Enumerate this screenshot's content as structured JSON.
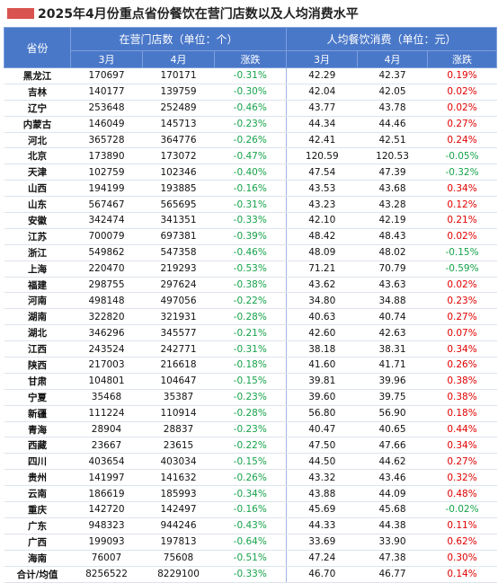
{
  "header": {
    "title": "2025年4月份重点省份餐饮在营门店数以及人均消费水平"
  },
  "table": {
    "group_headers": [
      "省份",
      "在营门店数（单位：个）",
      "人均餐饮消费（单位：元）"
    ],
    "sub_headers": [
      "3月",
      "4月",
      "涨跌",
      "3月",
      "4月",
      "涨跌"
    ],
    "rows": [
      [
        "黑龙江",
        "170697",
        "170171",
        "-0.31%",
        "42.29",
        "42.37",
        "0.19%"
      ],
      [
        "吉林",
        "140177",
        "139759",
        "-0.30%",
        "42.04",
        "42.05",
        "0.02%"
      ],
      [
        "辽宁",
        "253648",
        "252489",
        "-0.46%",
        "43.77",
        "43.78",
        "0.02%"
      ],
      [
        "内蒙古",
        "146049",
        "145713",
        "-0.23%",
        "44.34",
        "44.46",
        "0.27%"
      ],
      [
        "河北",
        "365728",
        "364776",
        "-0.26%",
        "42.41",
        "42.51",
        "0.24%"
      ],
      [
        "北京",
        "173890",
        "173072",
        "-0.47%",
        "120.59",
        "120.53",
        "-0.05%"
      ],
      [
        "天津",
        "102759",
        "102346",
        "-0.40%",
        "47.54",
        "47.39",
        "-0.32%"
      ],
      [
        "山西",
        "194199",
        "193885",
        "-0.16%",
        "43.53",
        "43.68",
        "0.34%"
      ],
      [
        "山东",
        "567467",
        "565695",
        "-0.31%",
        "43.23",
        "43.28",
        "0.12%"
      ],
      [
        "安徽",
        "342474",
        "341351",
        "-0.33%",
        "42.10",
        "42.19",
        "0.21%"
      ],
      [
        "江苏",
        "700079",
        "697381",
        "-0.39%",
        "48.42",
        "48.43",
        "0.02%"
      ],
      [
        "浙江",
        "549862",
        "547358",
        "-0.46%",
        "48.09",
        "48.02",
        "-0.15%"
      ],
      [
        "上海",
        "220470",
        "219293",
        "-0.53%",
        "71.21",
        "70.79",
        "-0.59%"
      ],
      [
        "福建",
        "298755",
        "297624",
        "-0.38%",
        "43.62",
        "43.63",
        "0.02%"
      ],
      [
        "河南",
        "498148",
        "497056",
        "-0.22%",
        "34.80",
        "34.88",
        "0.23%"
      ],
      [
        "湖南",
        "322820",
        "321931",
        "-0.28%",
        "40.63",
        "40.74",
        "0.27%"
      ],
      [
        "湖北",
        "346296",
        "345577",
        "-0.21%",
        "42.60",
        "42.63",
        "0.07%"
      ],
      [
        "江西",
        "243524",
        "242771",
        "-0.31%",
        "38.18",
        "38.31",
        "0.34%"
      ],
      [
        "陕西",
        "217003",
        "216618",
        "-0.18%",
        "41.60",
        "41.71",
        "0.26%"
      ],
      [
        "甘肃",
        "104801",
        "104647",
        "-0.15%",
        "39.81",
        "39.96",
        "0.38%"
      ],
      [
        "宁夏",
        "35468",
        "35387",
        "-0.23%",
        "39.60",
        "39.75",
        "0.38%"
      ],
      [
        "新疆",
        "111224",
        "110914",
        "-0.28%",
        "56.80",
        "56.90",
        "0.18%"
      ],
      [
        "青海",
        "28904",
        "28837",
        "-0.23%",
        "40.47",
        "40.65",
        "0.44%"
      ],
      [
        "西藏",
        "23667",
        "23615",
        "-0.22%",
        "47.50",
        "47.66",
        "0.34%"
      ],
      [
        "四川",
        "403654",
        "403034",
        "-0.15%",
        "44.50",
        "44.62",
        "0.27%"
      ],
      [
        "贵州",
        "141997",
        "141632",
        "-0.26%",
        "43.32",
        "43.46",
        "0.32%"
      ],
      [
        "云南",
        "186619",
        "185993",
        "-0.34%",
        "43.88",
        "44.09",
        "0.48%"
      ],
      [
        "重庆",
        "142720",
        "142497",
        "-0.16%",
        "45.69",
        "45.68",
        "-0.02%"
      ],
      [
        "广东",
        "948323",
        "944246",
        "-0.43%",
        "44.33",
        "44.38",
        "0.11%"
      ],
      [
        "广西",
        "199093",
        "197813",
        "-0.64%",
        "33.69",
        "33.90",
        "0.62%"
      ],
      [
        "海南",
        "76007",
        "75608",
        "-0.51%",
        "47.24",
        "47.38",
        "0.30%"
      ],
      [
        "合计/均值",
        "8256522",
        "8229100",
        "-0.33%",
        "46.70",
        "46.77",
        "0.14%"
      ]
    ]
  }
}
